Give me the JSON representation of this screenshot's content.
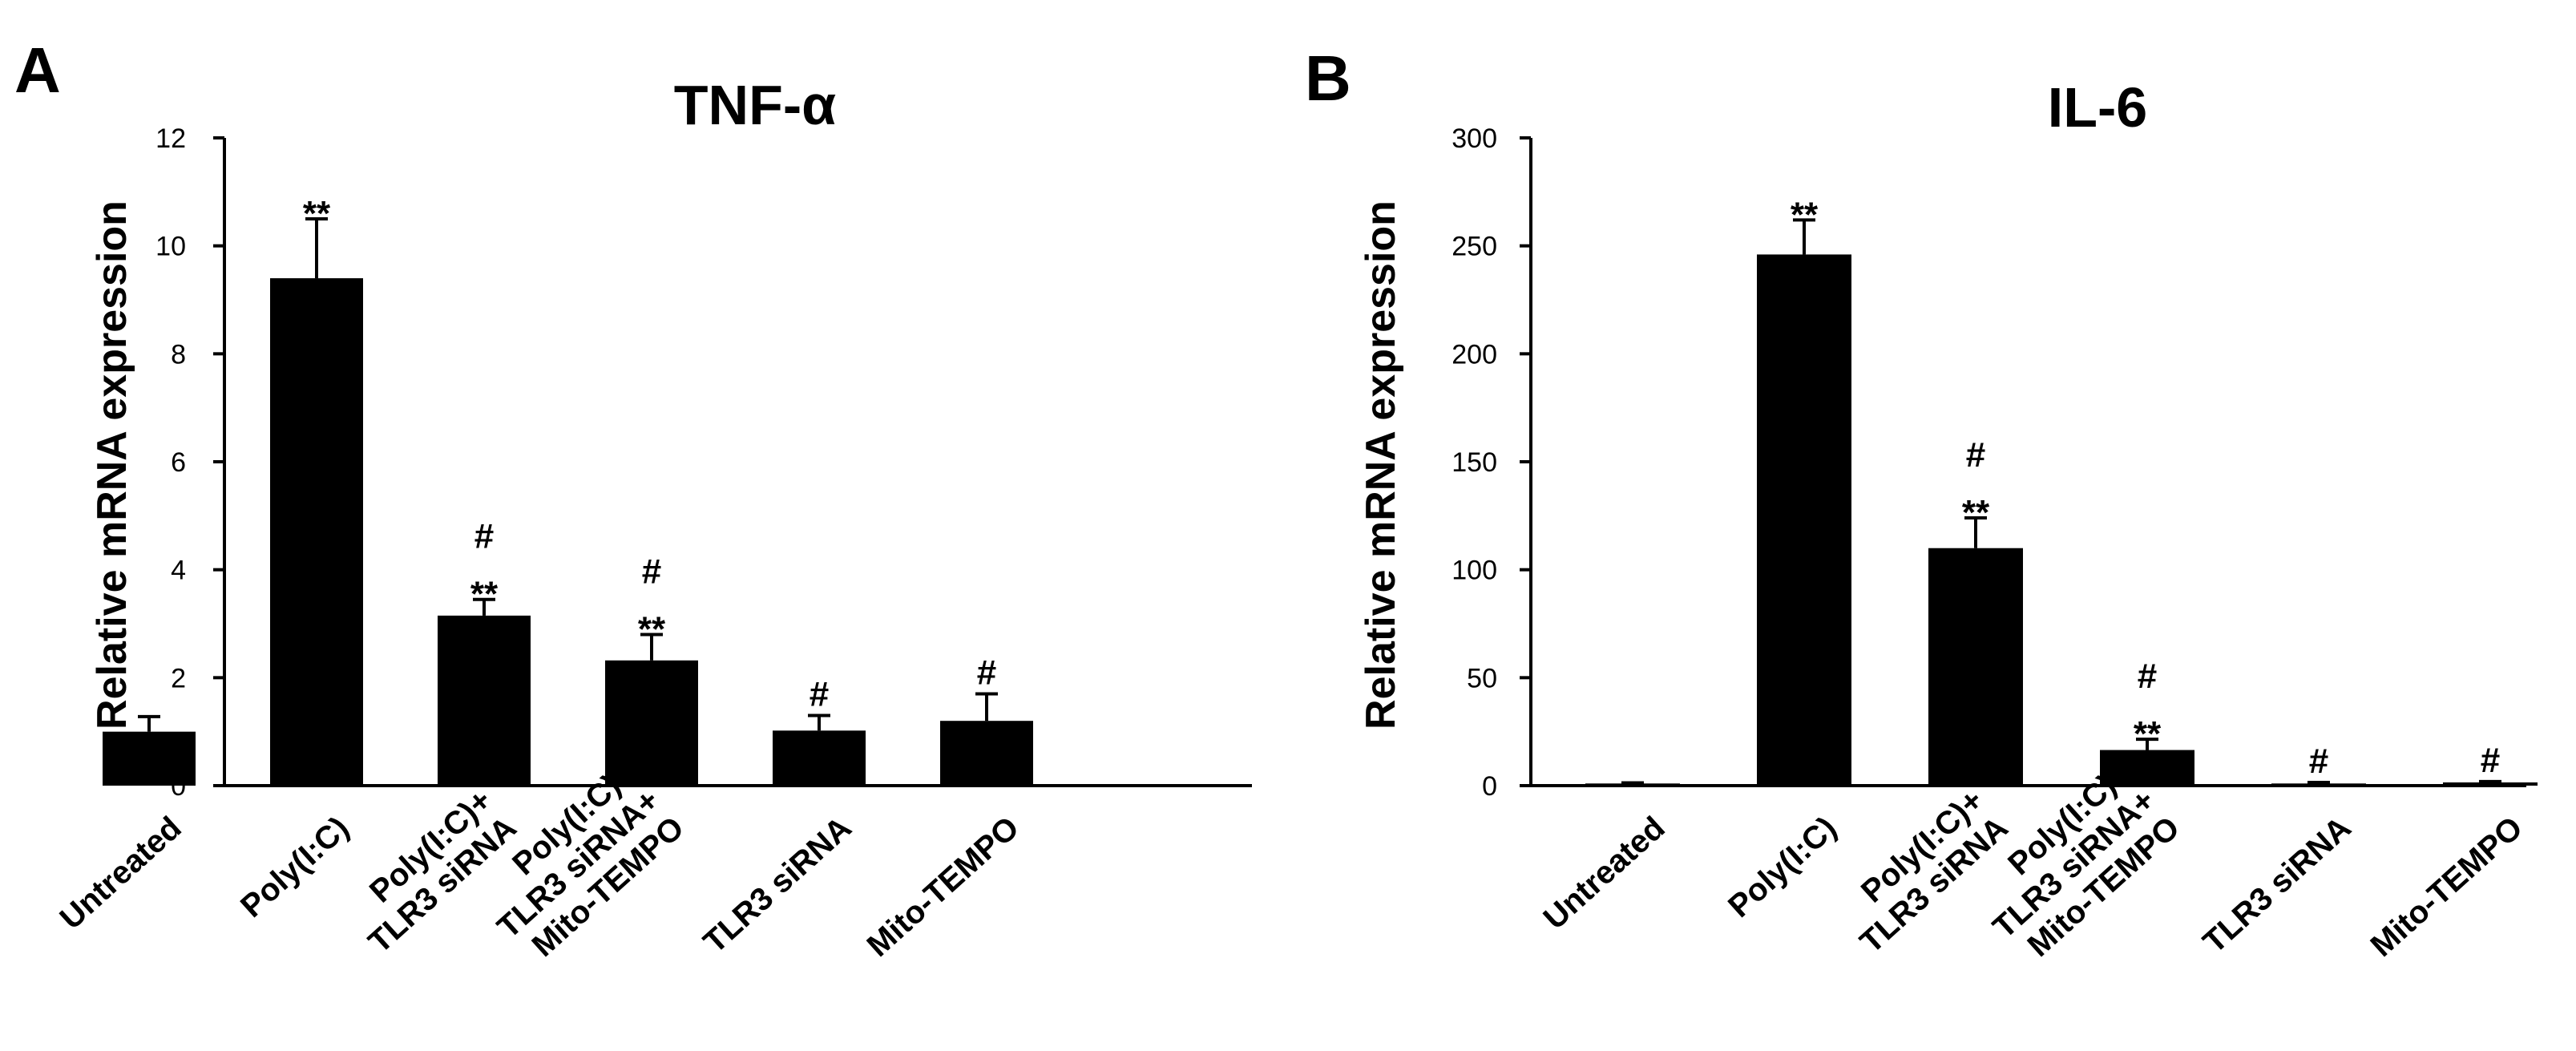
{
  "colors": {
    "bar": "#000000",
    "axis": "#000000",
    "background": "#ffffff"
  },
  "chart_data": [
    {
      "type": "bar",
      "panel": "A",
      "title": "TNF-α",
      "xlabel": "",
      "ylabel": "Relative mRNA expression",
      "ylim": [
        0,
        12
      ],
      "yticks": [
        0,
        2,
        4,
        6,
        8,
        10,
        12
      ],
      "categories": [
        [
          "Untreated"
        ],
        [
          "Poly(I:C)"
        ],
        [
          "Poly(I:C)+",
          "TLR3 siRNA"
        ],
        [
          "Poly(I:C)+",
          "TLR3 siRNA+",
          "Mito-TEMPO"
        ],
        [
          "TLR3 siRNA"
        ],
        [
          "Mito-TEMPO"
        ]
      ],
      "values": [
        1.0,
        9.4,
        3.15,
        2.32,
        1.02,
        1.2
      ],
      "errors": [
        0.28,
        1.1,
        0.3,
        0.48,
        0.28,
        0.5
      ],
      "annotations": [
        [],
        [
          "**"
        ],
        [
          "#",
          "**"
        ],
        [
          "#",
          "**"
        ],
        [
          "#"
        ],
        [
          "#"
        ]
      ]
    },
    {
      "type": "bar",
      "panel": "B",
      "title": "IL-6",
      "xlabel": "",
      "ylabel": "Relative mRNA expression",
      "ylim": [
        0,
        300
      ],
      "yticks": [
        0,
        50,
        100,
        150,
        200,
        250,
        300
      ],
      "categories": [
        [
          "Untreated"
        ],
        [
          "Poly(I:C)"
        ],
        [
          "Poly(I:C)+",
          "TLR3 siRNA"
        ],
        [
          "Poly(I:C)+",
          "TLR3 siRNA+",
          "Mito-TEMPO"
        ],
        [
          "TLR3 siRNA"
        ],
        [
          "Mito-TEMPO"
        ]
      ],
      "values": [
        1.0,
        246,
        110,
        16.5,
        1.0,
        1.5
      ],
      "errors": [
        0.3,
        16,
        14,
        5,
        0.5,
        0.4
      ],
      "annotations": [
        [],
        [
          "**"
        ],
        [
          "#",
          "**"
        ],
        [
          "#",
          "**"
        ],
        [
          "#"
        ],
        [
          "#"
        ]
      ]
    }
  ]
}
